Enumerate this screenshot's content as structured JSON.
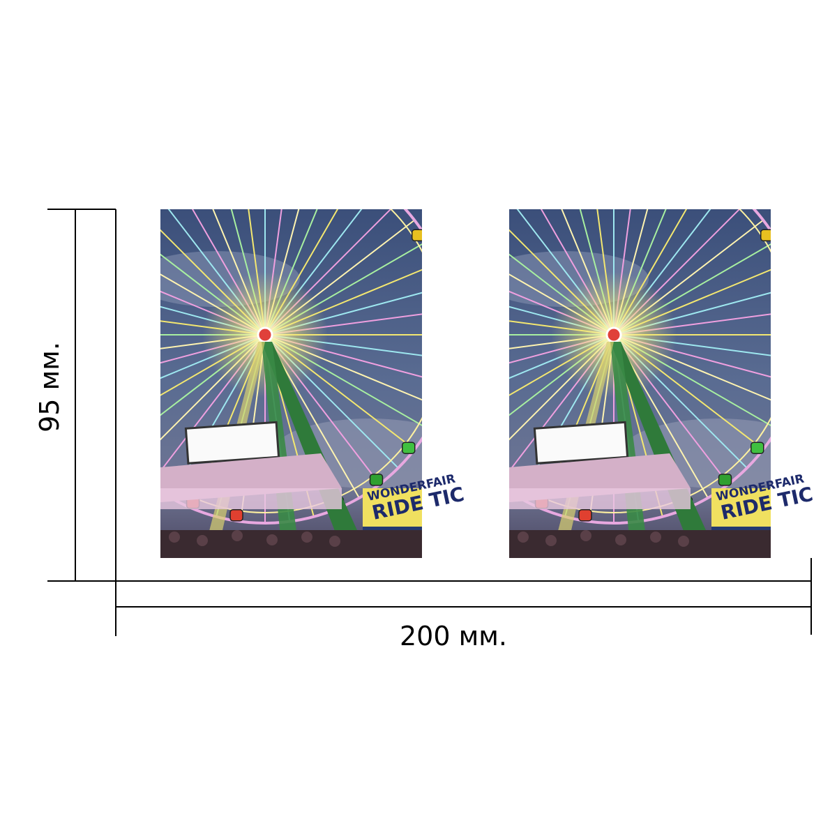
{
  "dimensions": {
    "height": "95 мм.",
    "width": "200 мм."
  },
  "photo": {
    "sign_top": "WONDERFAIR",
    "sign_bottom": "RIDE TIC"
  }
}
